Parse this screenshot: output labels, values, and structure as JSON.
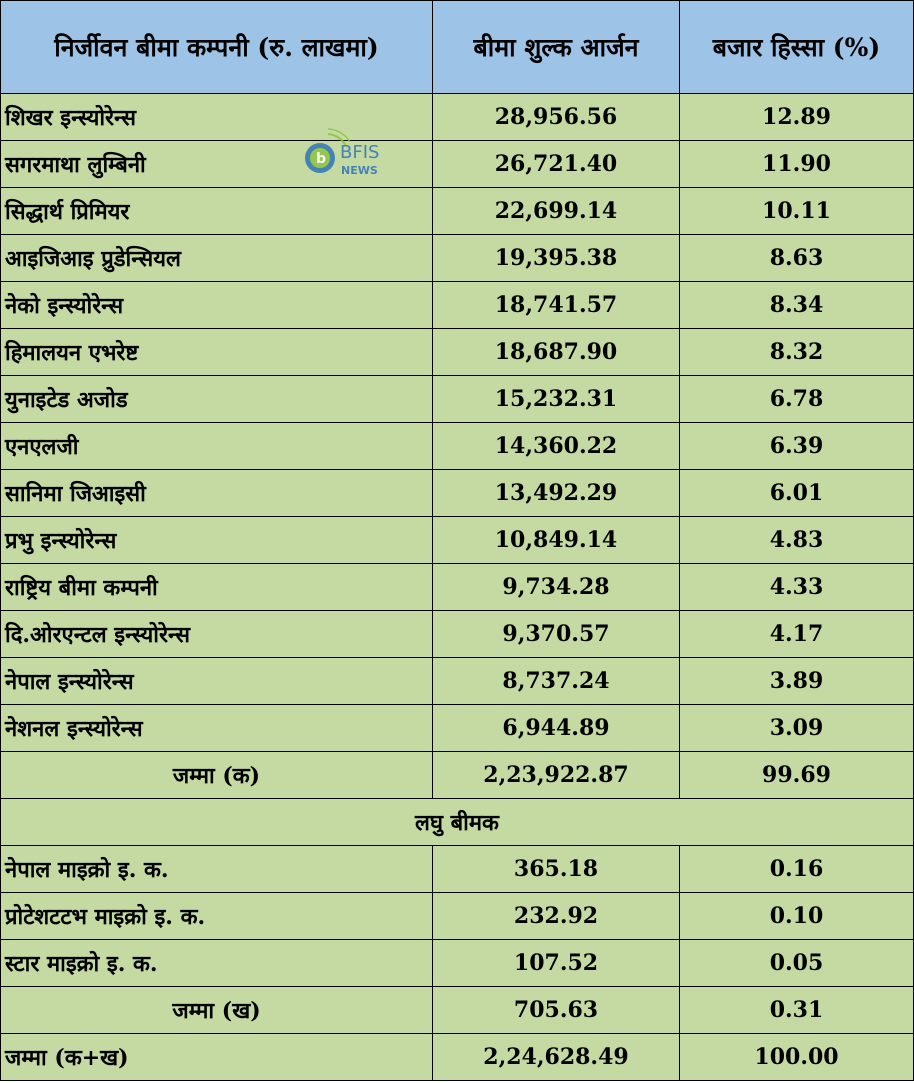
{
  "chart_data": {
    "type": "table",
    "columns": [
      "निर्जीवन बीमा कम्पनी (रु. लाखमा)",
      "बीमा शुल्क आर्जन",
      "बजार हिस्सा (%)"
    ],
    "rows": [
      {
        "name": "शिखर इन्स्योरेन्स",
        "premium": "28,956.56",
        "share": "12.89"
      },
      {
        "name": "सगरमाथा लुम्बिनी",
        "premium": "26,721.40",
        "share": "11.90"
      },
      {
        "name": "सिद्धार्थ प्रिमियर",
        "premium": "22,699.14",
        "share": "10.11"
      },
      {
        "name": "आइजिआइ प्रुडेन्सियल",
        "premium": "19,395.38",
        "share": "8.63"
      },
      {
        "name": "नेको इन्स्योरेन्स",
        "premium": "18,741.57",
        "share": "8.34"
      },
      {
        "name": "हिमालयन एभरेष्ट",
        "premium": "18,687.90",
        "share": "8.32"
      },
      {
        "name": "युनाइटेड अजोड",
        "premium": "15,232.31",
        "share": "6.78"
      },
      {
        "name": "एनएलजी",
        "premium": "14,360.22",
        "share": "6.39"
      },
      {
        "name": "सानिमा जिआइसी",
        "premium": "13,492.29",
        "share": "6.01"
      },
      {
        "name": "प्रभु इन्स्योरेन्स",
        "premium": "10,849.14",
        "share": "4.83"
      },
      {
        "name": "राष्ट्रिय बीमा कम्पनी",
        "premium": "9,734.28",
        "share": "4.33"
      },
      {
        "name": "दि.ओरएन्टल इन्स्योरेन्स",
        "premium": "9,370.57",
        "share": "4.17"
      },
      {
        "name": "नेपाल  इन्स्योरेन्स",
        "premium": "8,737.24",
        "share": "3.89"
      },
      {
        "name": "नेशनल इन्स्योरेन्स",
        "premium": "6,944.89",
        "share": "3.09"
      }
    ],
    "subtotal_a": {
      "label": "जम्मा (क)",
      "premium": "2,23,922.87",
      "share": "99.69"
    },
    "section_micro": "लघु बीमक",
    "micro_rows": [
      {
        "name": "नेपाल  माइक्रो इ. क.",
        "premium": "365.18",
        "share": "0.16"
      },
      {
        "name": "प्रोटेशटटभ माइक्रो इ. क.",
        "premium": "232.92",
        "share": "0.10"
      },
      {
        "name": "स्टार  माइक्रो इ. क.",
        "premium": "107.52",
        "share": "0.05"
      }
    ],
    "subtotal_b": {
      "label": "जम्मा (ख)",
      "premium": "705.63",
      "share": "0.31"
    },
    "grand_total": {
      "label": "जम्मा (क+ख)",
      "premium": "2,24,628.49",
      "share": "100.00"
    }
  },
  "watermark": {
    "brand": "BFIS",
    "sub": "NEWS",
    "colors": {
      "blue": "#2e75b6",
      "green": "#8cc63f"
    }
  }
}
